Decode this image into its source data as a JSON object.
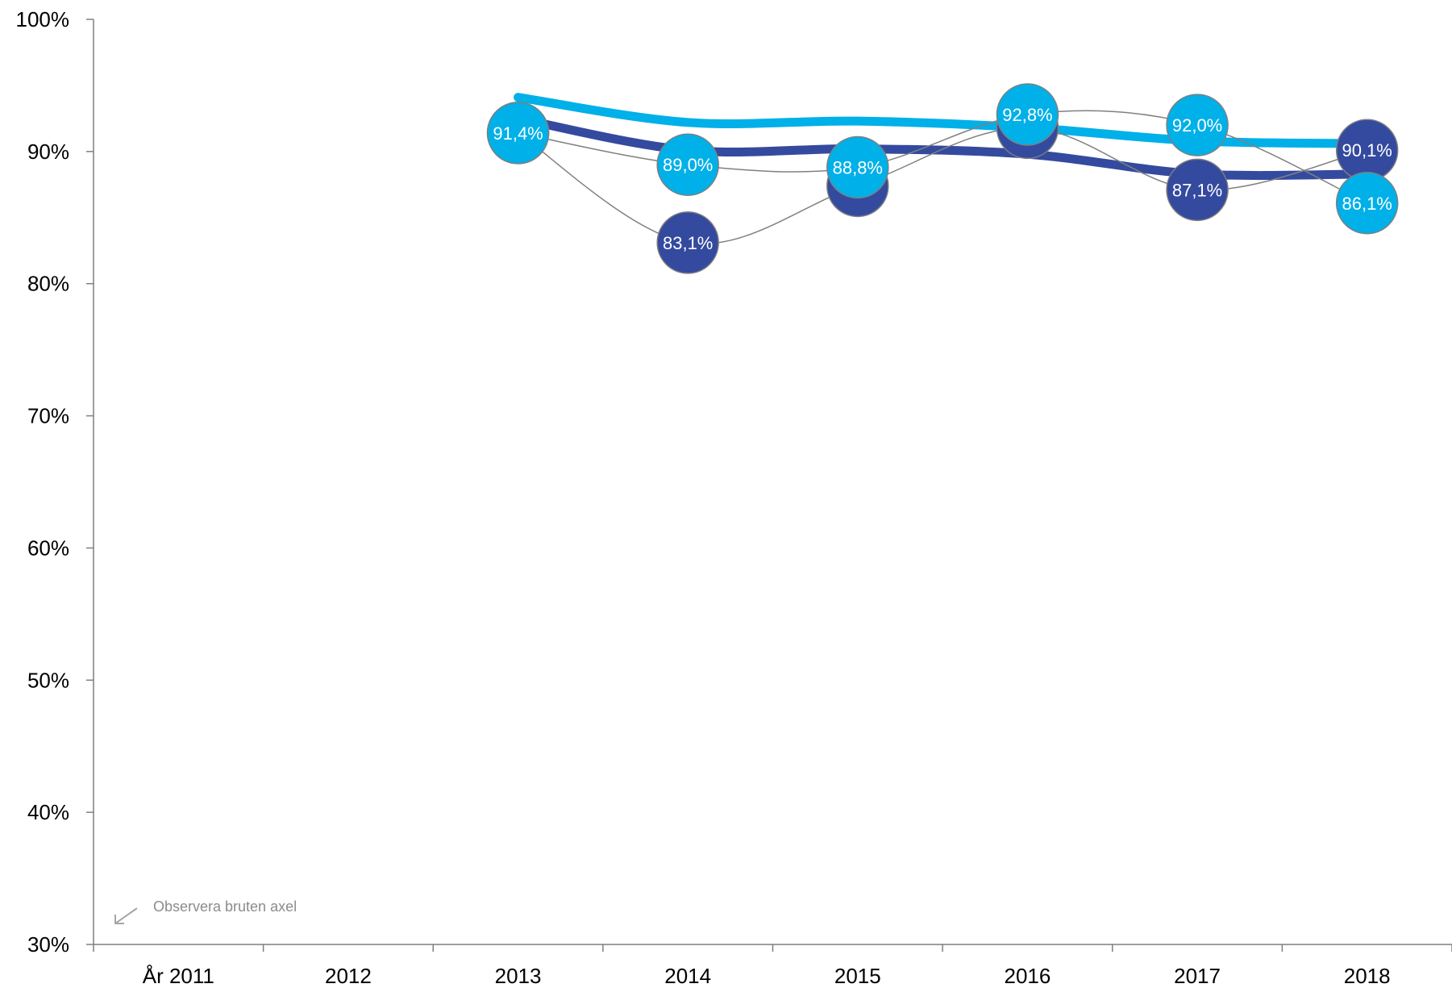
{
  "chart_data": {
    "type": "line",
    "title": "",
    "xlabel": "",
    "ylabel": "",
    "categories": [
      "År 2011",
      "2012",
      "2013",
      "2014",
      "2015",
      "2016",
      "2017",
      "2018"
    ],
    "ylim": [
      0.3,
      1.0
    ],
    "y_ticks": [
      {
        "value": 0.3,
        "label": "30%"
      },
      {
        "value": 0.4,
        "label": "40%"
      },
      {
        "value": 0.5,
        "label": "50%"
      },
      {
        "value": 0.6,
        "label": "60%"
      },
      {
        "value": 0.7,
        "label": "70%"
      },
      {
        "value": 0.8,
        "label": "80%"
      },
      {
        "value": 0.9,
        "label": "90%"
      },
      {
        "value": 1.0,
        "label": "100%"
      }
    ],
    "grid": false,
    "legend": "none",
    "series": [
      {
        "color": "#344a9f",
        "values": [
          null,
          null,
          0.914,
          0.831,
          0.874,
          0.918,
          0.871,
          0.901
        ],
        "labels": [
          null,
          null,
          "",
          "83,1%",
          "",
          "",
          "87,1%",
          "90,1%"
        ],
        "trend": [
          null,
          null,
          0.925,
          0.901,
          0.902,
          0.898,
          0.883,
          0.883
        ]
      },
      {
        "color": "#00b0e8",
        "values": [
          null,
          null,
          0.914,
          0.89,
          0.888,
          0.928,
          0.92,
          0.861
        ],
        "labels": [
          null,
          null,
          "91,4%",
          "89,0%",
          "88,8%",
          "92,8%",
          "92,0%",
          "86,1%"
        ],
        "trend": [
          null,
          null,
          0.941,
          0.922,
          0.923,
          0.918,
          0.908,
          0.906
        ]
      }
    ],
    "note": "Observera bruten axel"
  }
}
